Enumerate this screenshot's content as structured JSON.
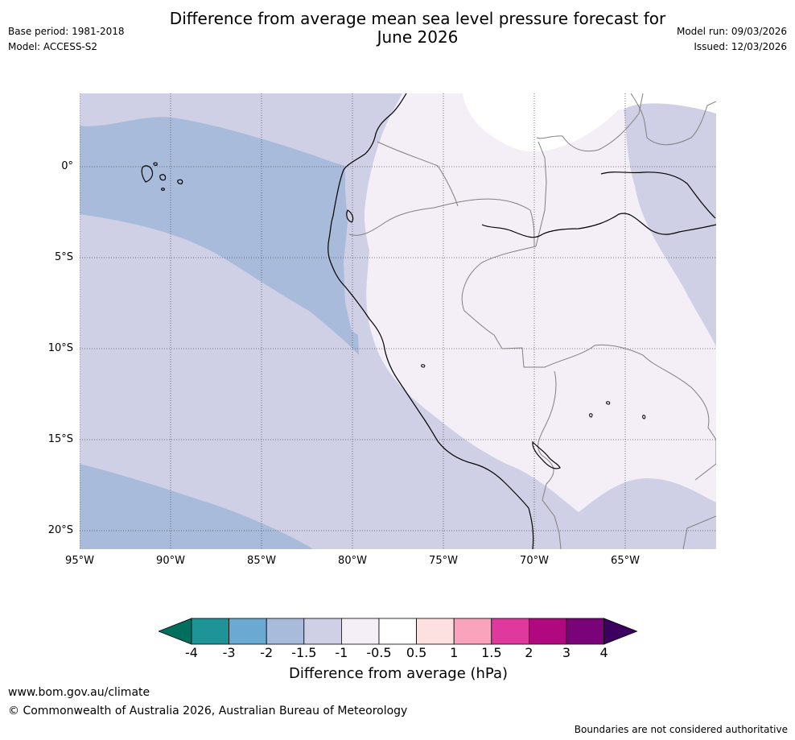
{
  "header": {
    "base_period": "Base period: 1981-2018",
    "model": "Model: ACCESS-S2",
    "title_line1": "Difference from average mean sea level pressure forecast for",
    "title_line2": "June 2026",
    "model_run": "Model run: 09/03/2026",
    "issued": "Issued: 12/03/2026"
  },
  "map": {
    "lat_labels": [
      "0°",
      "5°S",
      "10°S",
      "15°S",
      "20°S"
    ],
    "lon_labels": [
      "95°W",
      "90°W",
      "85°W",
      "80°W",
      "75°W",
      "70°W",
      "65°W"
    ],
    "colors": {
      "ocean_minus2": "#a8bbdb",
      "minus1_5": "#cfd0e5",
      "minus1": "#f4eef7",
      "zero": "#ffffff",
      "coast": "#000000",
      "border": "#808080",
      "grid": "#555555"
    }
  },
  "colorbar": {
    "ticks": [
      "-4",
      "-3",
      "-2",
      "-1.5",
      "-1",
      "-0.5",
      "0.5",
      "1",
      "1.5",
      "2",
      "3",
      "4"
    ],
    "colors": [
      "#006f5d",
      "#1e9499",
      "#6aa9d1",
      "#a8bbdb",
      "#cfd0e5",
      "#f4eef7",
      "#ffffff",
      "#fde0e0",
      "#f9a3bd",
      "#e0399e",
      "#b0087f",
      "#7b037a",
      "#3e0060"
    ],
    "label": "Difference from average (hPa)"
  },
  "footer": {
    "website": "www.bom.gov.au/climate",
    "copyright": "© Commonwealth of Australia 2026, Australian Bureau of Meteorology",
    "disclaimer": "Boundaries are not considered authoritative"
  }
}
